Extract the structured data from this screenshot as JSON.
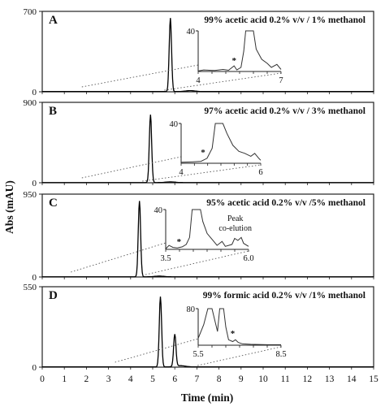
{
  "chart_data": {
    "type": "line",
    "ylabel": "Abs (mAU)",
    "xlabel": "Time (min)",
    "x_ticks": [
      "0",
      "1",
      "2",
      "3",
      "4",
      "5",
      "6",
      "7",
      "8",
      "9",
      "10",
      "11",
      "12",
      "13",
      "14",
      "15"
    ],
    "xlim": [
      0,
      15
    ],
    "panels": [
      {
        "id": "A",
        "label": "A",
        "condition": "99% acetic acid 0.2% v/v / 1% methanol",
        "ylim": [
          0,
          700
        ],
        "y_ticks": [
          "0",
          "700"
        ],
        "peaks": [
          {
            "t": 5.8,
            "h": 640
          }
        ],
        "inset": {
          "xlim": [
            4,
            7
          ],
          "ylim": [
            0,
            40
          ],
          "x_ticks": [
            "4",
            "7"
          ],
          "y_ticks": [
            "40"
          ],
          "marker": "*",
          "note": "",
          "series": [
            [
              4.0,
              0.5
            ],
            [
              4.2,
              1.5
            ],
            [
              4.4,
              1.2
            ],
            [
              4.6,
              1.0
            ],
            [
              4.9,
              2.0
            ],
            [
              5.1,
              1.2
            ],
            [
              5.3,
              5.5
            ],
            [
              5.4,
              1.5
            ],
            [
              5.55,
              4
            ],
            [
              5.65,
              20
            ],
            [
              5.72,
              42
            ],
            [
              6.0,
              40
            ],
            [
              6.1,
              22
            ],
            [
              6.3,
              12
            ],
            [
              6.5,
              8
            ],
            [
              6.65,
              4
            ],
            [
              6.85,
              7
            ],
            [
              7.0,
              2
            ]
          ]
        }
      },
      {
        "id": "B",
        "label": "B",
        "condition": "97% acetic acid 0.2% v/v / 3% methanol",
        "ylim": [
          0,
          900
        ],
        "y_ticks": [
          "0",
          "900"
        ],
        "peaks": [
          {
            "t": 4.9,
            "h": 760
          }
        ],
        "inset": {
          "xlim": [
            4,
            6
          ],
          "ylim": [
            0,
            40
          ],
          "x_ticks": [
            "4",
            "6"
          ],
          "y_ticks": [
            "40"
          ],
          "marker": "*",
          "note": "",
          "series": [
            [
              4.0,
              1.0
            ],
            [
              4.3,
              1.5
            ],
            [
              4.5,
              2.0
            ],
            [
              4.65,
              5
            ],
            [
              4.78,
              15
            ],
            [
              4.86,
              42
            ],
            [
              5.05,
              40
            ],
            [
              5.15,
              30
            ],
            [
              5.3,
              18
            ],
            [
              5.45,
              12
            ],
            [
              5.6,
              10
            ],
            [
              5.75,
              7
            ],
            [
              5.85,
              10
            ],
            [
              5.95,
              5
            ],
            [
              6.0,
              3
            ]
          ]
        }
      },
      {
        "id": "C",
        "label": "C",
        "condition": "95% acetic acid 0.2% v/v /5% methanol",
        "ylim": [
          0,
          950
        ],
        "y_ticks": [
          "0",
          "950"
        ],
        "peaks": [
          {
            "t": 4.4,
            "h": 870
          }
        ],
        "inset": {
          "xlim": [
            3.5,
            6.0
          ],
          "ylim": [
            0,
            40
          ],
          "x_ticks": [
            "3.5",
            "6.0"
          ],
          "y_ticks": [
            "40"
          ],
          "marker": "*",
          "note": "Peak co-elution",
          "series": [
            [
              3.5,
              0.5
            ],
            [
              3.6,
              4
            ],
            [
              3.72,
              2
            ],
            [
              3.85,
              1.5
            ],
            [
              4.0,
              2.5
            ],
            [
              4.12,
              5
            ],
            [
              4.22,
              12
            ],
            [
              4.3,
              42
            ],
            [
              4.55,
              42
            ],
            [
              4.62,
              28
            ],
            [
              4.75,
              16
            ],
            [
              4.85,
              12
            ],
            [
              4.95,
              8
            ],
            [
              5.05,
              4
            ],
            [
              5.2,
              8
            ],
            [
              5.3,
              3
            ],
            [
              5.5,
              5
            ],
            [
              5.58,
              11
            ],
            [
              5.68,
              9
            ],
            [
              5.78,
              12
            ],
            [
              5.85,
              6
            ],
            [
              6.0,
              3
            ]
          ]
        }
      },
      {
        "id": "D",
        "label": "D",
        "condition": "99% formic acid 0.2% v/v /1% methanol",
        "ylim": [
          0,
          550
        ],
        "y_ticks": [
          "0",
          "550"
        ],
        "peaks": [
          {
            "t": 5.35,
            "h": 480
          },
          {
            "t": 6.0,
            "h": 220
          }
        ],
        "inset": {
          "xlim": [
            5.5,
            8.5
          ],
          "ylim": [
            0,
            80
          ],
          "x_ticks": [
            "5.5",
            "8.5"
          ],
          "y_ticks": [
            "80"
          ],
          "marker": "*",
          "note": "",
          "series": [
            [
              5.5,
              15
            ],
            [
              5.7,
              45
            ],
            [
              5.85,
              85
            ],
            [
              6.0,
              85
            ],
            [
              6.1,
              55
            ],
            [
              6.2,
              30
            ],
            [
              6.28,
              85
            ],
            [
              6.42,
              85
            ],
            [
              6.5,
              40
            ],
            [
              6.6,
              12
            ],
            [
              6.75,
              8
            ],
            [
              6.85,
              12
            ],
            [
              6.95,
              6
            ],
            [
              7.1,
              3
            ],
            [
              7.4,
              2
            ],
            [
              8.0,
              1
            ],
            [
              8.5,
              1
            ]
          ]
        }
      }
    ]
  }
}
